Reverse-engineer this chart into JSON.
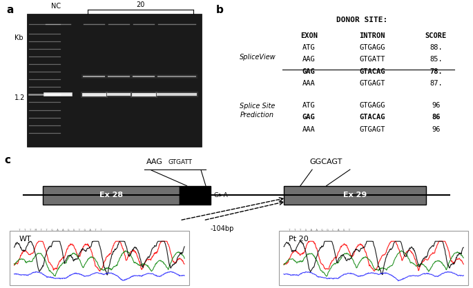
{
  "panel_a_label": "a",
  "panel_b_label": "b",
  "panel_c_label": "c",
  "gel_label_nc": "NC",
  "gel_label_20": "20",
  "gel_kb_label": "Kb",
  "gel_band_label": "1.2",
  "donor_site_title": "DONOR SITE:",
  "header_exon": "EXON",
  "header_intron": "INTRON",
  "header_score": "SCORE",
  "spliceview_label": "SpliceView",
  "spliceview_rows": [
    {
      "exon": "ATG",
      "intron": "GTGAGG",
      "score": "88.",
      "bold": false,
      "underline": false
    },
    {
      "exon": "AAG",
      "intron": "GTGATT",
      "score": "85.",
      "bold": false,
      "underline": true
    },
    {
      "exon": "GAG",
      "intron": "GTACAG",
      "score": "78.",
      "bold": true,
      "underline": false
    },
    {
      "exon": "AAA",
      "intron": "GTGAGT",
      "score": "87.",
      "bold": false,
      "underline": false
    }
  ],
  "ssp_rows": [
    {
      "exon": "ATG",
      "intron": "GTGAGG",
      "score": "96",
      "bold": false
    },
    {
      "exon": "GAG",
      "intron": "GTACAG",
      "score": "86",
      "bold": true
    },
    {
      "exon": "AAA",
      "intron": "GTGAGT",
      "score": "96",
      "bold": false
    }
  ],
  "c_aag": "AAG",
  "c_gtgatt": "GTGATT",
  "c_ggcagt": "GGCAGT",
  "c_ex28": "Ex 28",
  "c_ex29": "Ex 29",
  "c_mutation": "G>A",
  "c_deletion": "-104bp",
  "c_wt": "WT",
  "c_pt20": "Pt 20",
  "background_color": "#ffffff",
  "gel_bg_color": "#1a1a1a",
  "exon_box_color": "#707070",
  "mutation_box_color": "#000000"
}
